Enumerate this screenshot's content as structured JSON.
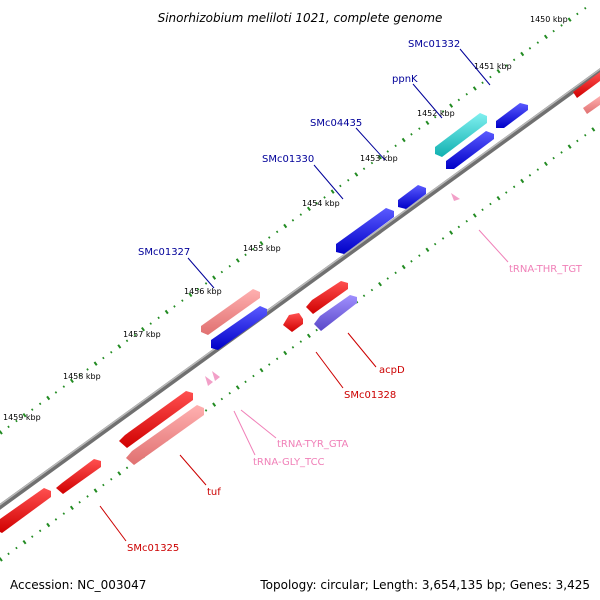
{
  "title": "Sinorhizobium meliloti 1021, complete genome",
  "footer": {
    "accession": "Accession: NC_003047",
    "summary": "Topology: circular; Length: 3,654,135 bp; Genes: 3,425"
  },
  "ticks": [
    "1450 kbp",
    "1451 kbp",
    "1452 kbp",
    "1453 kbp",
    "1454 kbp",
    "1455 kbp",
    "1456 kbp",
    "1457 kbp",
    "1458 kbp",
    "1459 kbp"
  ],
  "gene_labels": {
    "smc01332": "SMc01332",
    "ppnk": "ppnK",
    "smc04435": "SMc04435",
    "smc01330": "SMc01330",
    "smc01327": "SMc01327",
    "trna_thr": "tRNA-THR_TGT",
    "acpd": "acpD",
    "smc01328": "SMc01328",
    "trna_tyr": "tRNA-TYR_GTA",
    "trna_gly": "tRNA-GLY_TCC",
    "tuf": "tuf",
    "smc01325": "SMc01325"
  },
  "colors": {
    "blue": "#0000ee",
    "red": "#ee0000",
    "pink": "#f08080",
    "teal": "#20c8c8",
    "purple": "#7060d8",
    "trna": "#f2a0c8",
    "backbone": "#888888",
    "tick_green": "#228b22",
    "label_blue": "#000099",
    "label_red": "#cc0000",
    "label_pink": "#f080b8"
  }
}
